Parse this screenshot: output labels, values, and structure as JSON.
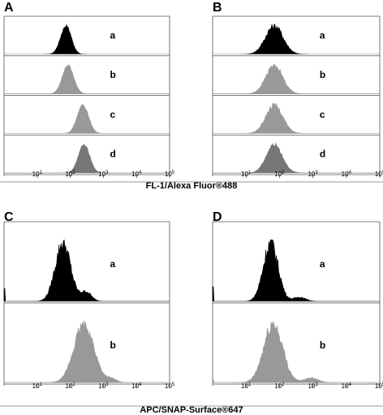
{
  "chart_data": [
    {
      "type": "area",
      "panel_label": "A",
      "x_scale": "log",
      "xlim": [
        1,
        100000
      ],
      "x_ticks": [
        "10^1",
        "10^2",
        "10^3",
        "10^4",
        "10^5"
      ],
      "series": [
        {
          "name": "a",
          "peak_x": 75,
          "spread": 0.16,
          "skew": -0.03,
          "color": "#000000",
          "noise": 0.05,
          "tail": []
        },
        {
          "name": "b",
          "peak_x": 85,
          "spread": 0.17,
          "skew": 0.0,
          "color": "#999999",
          "noise": 0.04,
          "tail": []
        },
        {
          "name": "c",
          "peak_x": 240,
          "spread": 0.17,
          "skew": 0.0,
          "color": "#999999",
          "noise": 0.04,
          "tail": []
        },
        {
          "name": "d",
          "peak_x": 260,
          "spread": 0.17,
          "skew": 0.0,
          "color": "#777777",
          "noise": 0.04,
          "tail": []
        }
      ]
    },
    {
      "type": "area",
      "panel_label": "B",
      "x_scale": "log",
      "xlim": [
        1,
        100000
      ],
      "x_ticks": [
        "10^1",
        "10^2",
        "10^3",
        "10^4",
        "10^5"
      ],
      "series": [
        {
          "name": "a",
          "peak_x": 70,
          "spread": 0.26,
          "skew": 0.0,
          "color": "#000000",
          "noise": 0.12,
          "tail": []
        },
        {
          "name": "b",
          "peak_x": 70,
          "spread": 0.25,
          "skew": 0.0,
          "color": "#999999",
          "noise": 0.1,
          "tail": []
        },
        {
          "name": "c",
          "peak_x": 70,
          "spread": 0.25,
          "skew": 0.0,
          "color": "#999999",
          "noise": 0.1,
          "tail": []
        },
        {
          "name": "d",
          "peak_x": 70,
          "spread": 0.24,
          "skew": 0.0,
          "color": "#777777",
          "noise": 0.08,
          "tail": []
        }
      ]
    },
    {
      "type": "area",
      "panel_label": "C",
      "x_scale": "log",
      "xlim": [
        1,
        100000
      ],
      "x_ticks": [
        "10^1",
        "10^2",
        "10^3",
        "10^4",
        "10^5"
      ],
      "series": [
        {
          "name": "a",
          "peak_x": 60,
          "spread": 0.23,
          "skew": 0.0,
          "color": "#000000",
          "noise": 0.14,
          "tail": [
            {
              "x": 300,
              "w": 0.16,
              "h": 0.16
            }
          ],
          "spike": 0.22
        },
        {
          "name": "b",
          "peak_x": 260,
          "spread": 0.3,
          "skew": 0.0,
          "color": "#999999",
          "noise": 0.1,
          "tail": [
            {
              "x": 1800,
              "w": 0.15,
              "h": 0.06
            }
          ]
        }
      ]
    },
    {
      "type": "area",
      "panel_label": "D",
      "x_scale": "log",
      "xlim": [
        1,
        100000
      ],
      "x_ticks": [
        "10^1",
        "10^2",
        "10^3",
        "10^4",
        "10^5"
      ],
      "series": [
        {
          "name": "a",
          "peak_x": 55,
          "spread": 0.22,
          "skew": 0.0,
          "color": "#000000",
          "noise": 0.16,
          "tail": [
            {
              "x": 400,
              "w": 0.18,
              "h": 0.07
            }
          ],
          "spike": 0.25
        },
        {
          "name": "b",
          "peak_x": 65,
          "spread": 0.28,
          "skew": 0.0,
          "color": "#999999",
          "noise": 0.14,
          "tail": [
            {
              "x": 900,
              "w": 0.2,
              "h": 0.08
            }
          ],
          "spike": 0.05
        }
      ]
    }
  ],
  "axis_titles": {
    "top": "FL-1/Alexa Fluor®488",
    "bottom": "APC/SNAP-Surface®647"
  }
}
